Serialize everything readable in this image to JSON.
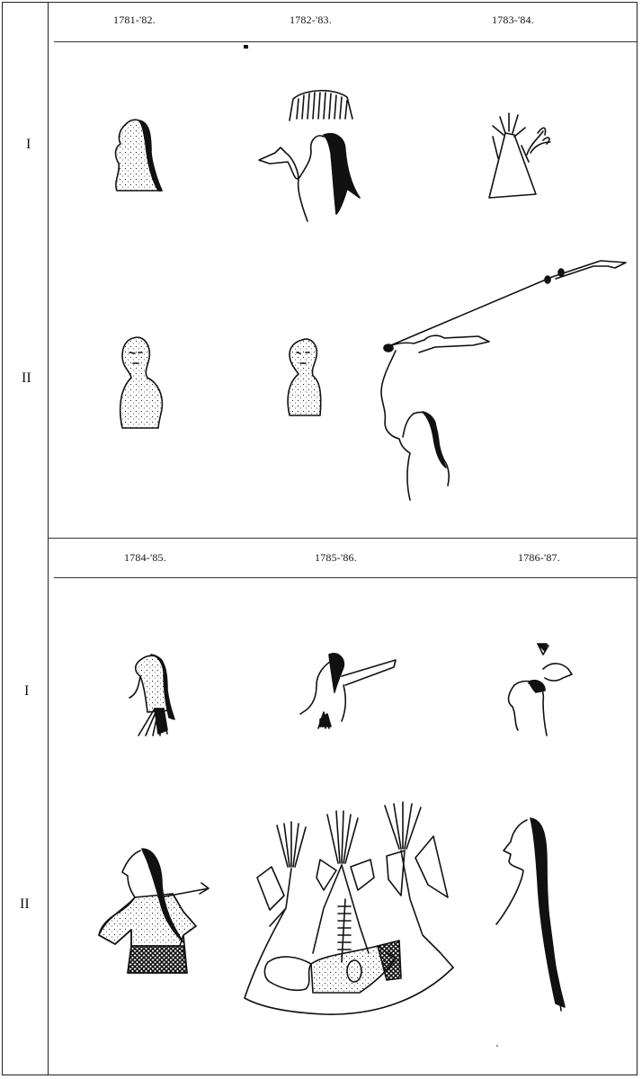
{
  "top_section": {
    "years": [
      "1781-'82.",
      "1782-'83.",
      "1783-'84."
    ]
  },
  "bottom_section": {
    "years": [
      "1784-'85.",
      "1785-'86.",
      "1786-'87."
    ]
  },
  "row_labels": {
    "row1": "I",
    "row2": "II"
  }
}
